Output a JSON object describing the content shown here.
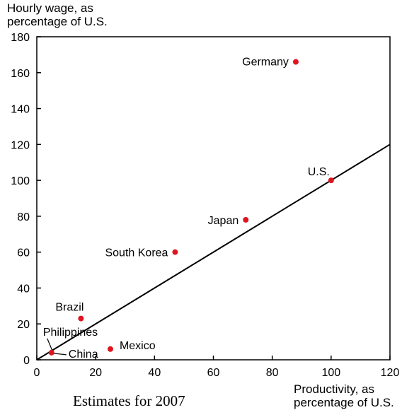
{
  "chart_data": {
    "type": "scatter",
    "caption": "Estimates for 2007",
    "ylabel_lines": [
      "Hourly wage, as",
      "percentage of U.S."
    ],
    "xlabel_lines": [
      "Productivity, as",
      "percentage of U.S."
    ],
    "xlim": [
      0,
      120
    ],
    "ylim": [
      0,
      180
    ],
    "xticks": [
      0,
      20,
      40,
      60,
      80,
      100,
      120
    ],
    "yticks": [
      0,
      20,
      40,
      60,
      80,
      100,
      120,
      140,
      160,
      180
    ],
    "grid": false,
    "points": [
      {
        "label": "Germany",
        "x": 88,
        "y": 166
      },
      {
        "label": "U.S.",
        "x": 100,
        "y": 100
      },
      {
        "label": "Japan",
        "x": 71,
        "y": 78
      },
      {
        "label": "South Korea",
        "x": 47,
        "y": 60
      },
      {
        "label": "Brazil",
        "x": 15,
        "y": 23
      },
      {
        "label": "Mexico",
        "x": 25,
        "y": 6
      },
      {
        "label": "Philippines",
        "x": 5,
        "y": 4
      },
      {
        "label": "China",
        "x": 5,
        "y": 4
      }
    ],
    "trend_line": {
      "x": [
        0,
        120
      ],
      "y": [
        0,
        120
      ]
    },
    "point_color": "#e0141e"
  }
}
